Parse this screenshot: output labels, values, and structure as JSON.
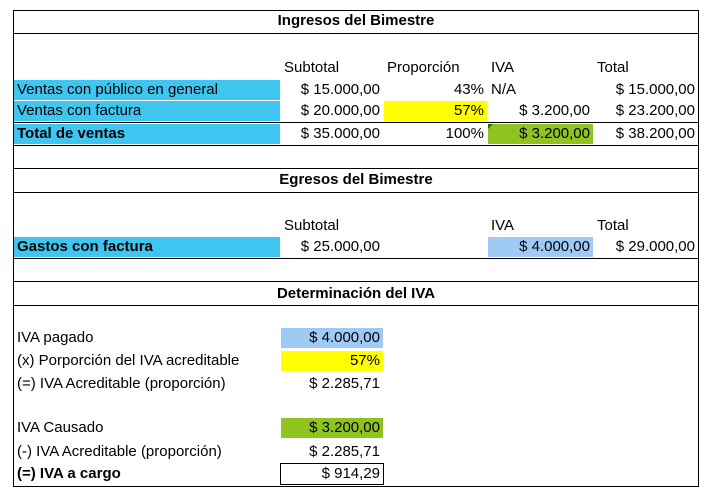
{
  "ingresos": {
    "title": "Ingresos del Bimestre",
    "headers": {
      "subtotal": "Subtotal",
      "proporcion": "Proporción",
      "iva": "IVA",
      "total": "Total"
    },
    "rows": [
      {
        "label": "Ventas con público en general",
        "subtotal": "$ 15.000,00",
        "proporcion": "43%",
        "iva": "N/A",
        "total": "$ 15.000,00"
      },
      {
        "label": "Ventas con factura",
        "subtotal": "$ 20.000,00",
        "proporcion": "57%",
        "iva": "$ 3.200,00",
        "total": "$ 23.200,00"
      }
    ],
    "total_row": {
      "label": "Total de ventas",
      "subtotal": "$ 35.000,00",
      "proporcion": "100%",
      "iva": "$ 3.200,00",
      "total": "$ 38.200,00"
    }
  },
  "egresos": {
    "title": "Egresos del Bimestre",
    "headers": {
      "subtotal": "Subtotal",
      "iva": "IVA",
      "total": "Total"
    },
    "row": {
      "label": "Gastos con factura",
      "subtotal": "$ 25.000,00",
      "iva": "$ 4.000,00",
      "total": "$ 29.000,00"
    }
  },
  "determinacion": {
    "title": "Determinación del IVA",
    "iva_pagado": {
      "label": "IVA pagado",
      "value": "$ 4.000,00"
    },
    "proporcion": {
      "label": "(x) Porporción del IVA acreditable",
      "value": "57%"
    },
    "acreditable1": {
      "label": "(=) IVA Acreditable (proporción)",
      "value": "$ 2.285,71"
    },
    "iva_causado": {
      "label": "IVA Causado",
      "value": "$ 3.200,00"
    },
    "acreditable2": {
      "label": "(-) IVA Acreditable (proporción)",
      "value": "$ 2.285,71"
    },
    "a_cargo": {
      "label": "(=) IVA a cargo",
      "value": "$ 914,29"
    }
  },
  "colors": {
    "cyan": "#3ec6f0",
    "yellow": "#ffff00",
    "green": "#8fc31f",
    "light_blue": "#9fcaf5"
  }
}
